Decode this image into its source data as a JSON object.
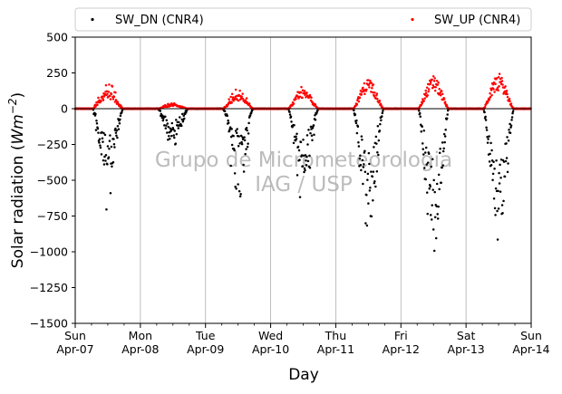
{
  "chart_data": {
    "type": "scatter",
    "title": "",
    "xlabel": "Day",
    "ylabel": "Solar radiation (Wm−2)",
    "ylabel_prefix": "Solar radiation (",
    "ylabel_unit_main": "Wm",
    "ylabel_unit_exp": "−2",
    "ylabel_suffix": ")",
    "watermark": [
      "Grupo de Micrometeorologia",
      "IAG / USP"
    ],
    "xlim": [
      "2019-04-07",
      "2019-04-14"
    ],
    "ylim": [
      -1500,
      500
    ],
    "y_ticks": [
      500,
      250,
      0,
      -250,
      -500,
      -750,
      -1000,
      -1250,
      -1500
    ],
    "y_tick_labels": [
      "500",
      "250",
      "0",
      "−250",
      "−500",
      "−750",
      "−1000",
      "−1250",
      "−1500"
    ],
    "x_ticks": [
      {
        "weekday": "Sun",
        "date": "Apr-07"
      },
      {
        "weekday": "Mon",
        "date": "Apr-08"
      },
      {
        "weekday": "Tue",
        "date": "Apr-09"
      },
      {
        "weekday": "Wed",
        "date": "Apr-10"
      },
      {
        "weekday": "Thu",
        "date": "Apr-11"
      },
      {
        "weekday": "Fri",
        "date": "Apr-12"
      },
      {
        "weekday": "Sat",
        "date": "Apr-13"
      },
      {
        "weekday": "Sun",
        "date": "Apr-14"
      }
    ],
    "grid": "vertical at day boundaries",
    "legend_placement": "above plot, two columns",
    "zero_line": true,
    "series": [
      {
        "name": "SW_DN (CNR4)",
        "color": "#000000",
        "daily_envelope": [
          {
            "date": "2019-04-07",
            "peak_hour": 12.5,
            "peak": -800,
            "typical": -320
          },
          {
            "date": "2019-04-08",
            "peak_hour": 12.5,
            "peak": -270,
            "typical": -140
          },
          {
            "date": "2019-04-09",
            "peak_hour": 12.0,
            "peak": -650,
            "typical": -230
          },
          {
            "date": "2019-04-10",
            "peak_hour": 12.5,
            "peak": -680,
            "typical": -310
          },
          {
            "date": "2019-04-11",
            "peak_hour": 12.5,
            "peak": -880,
            "typical": -460
          },
          {
            "date": "2019-04-12",
            "peak_hour": 12.5,
            "peak": -1000,
            "typical": -580
          },
          {
            "date": "2019-04-13",
            "peak_hour": 12.5,
            "peak": -950,
            "typical": -560
          }
        ]
      },
      {
        "name": "SW_UP (CNR4)",
        "color": "#ff0000",
        "daily_envelope": [
          {
            "date": "2019-04-07",
            "peak_hour": 12.5,
            "peak": 190,
            "typical": 95
          },
          {
            "date": "2019-04-08",
            "peak_hour": 12.5,
            "peak": 40,
            "typical": 25
          },
          {
            "date": "2019-04-09",
            "peak_hour": 12.5,
            "peak": 140,
            "typical": 75
          },
          {
            "date": "2019-04-10",
            "peak_hour": 12.5,
            "peak": 160,
            "typical": 100
          },
          {
            "date": "2019-04-11",
            "peak_hour": 12.5,
            "peak": 210,
            "typical": 160
          },
          {
            "date": "2019-04-12",
            "peak_hour": 12.5,
            "peak": 240,
            "typical": 170
          },
          {
            "date": "2019-04-13",
            "peak_hour": 12.5,
            "peak": 245,
            "typical": 180
          }
        ]
      }
    ]
  }
}
